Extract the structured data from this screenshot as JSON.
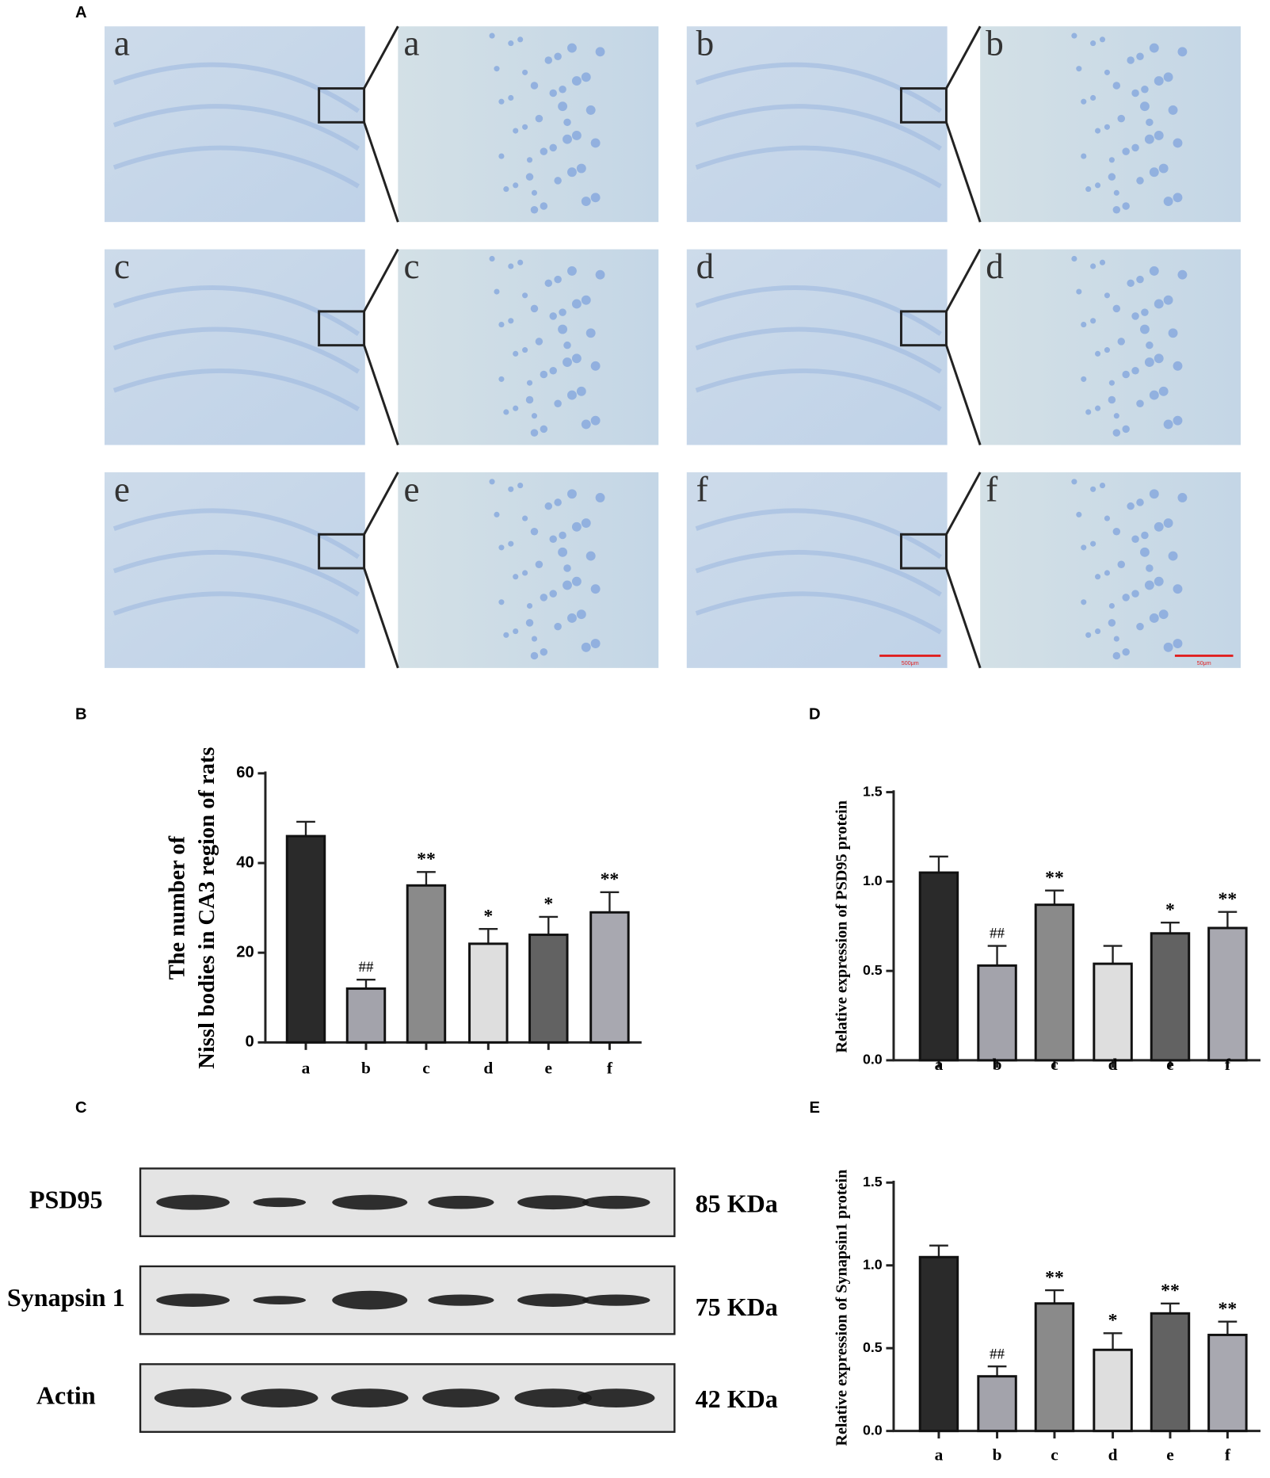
{
  "panel_labels": [
    "A",
    "B",
    "C",
    "D",
    "E"
  ],
  "micrographs": {
    "labels": [
      "a",
      "b",
      "c",
      "d",
      "e",
      "f"
    ],
    "scale_bars": [
      "500μm",
      "50μm"
    ]
  },
  "western_blot": {
    "proteins": [
      "PSD95",
      "Synapsin 1",
      "Actin"
    ],
    "sizes": [
      "85 KDa",
      "75 KDa",
      "42 KDa"
    ]
  },
  "chart_data": [
    {
      "type": "bar",
      "ylabel": [
        "The number of",
        "Nissl bodies in CA3 region of rats"
      ],
      "categories": [
        "a",
        "b",
        "c",
        "d",
        "e",
        "f"
      ],
      "values": [
        46,
        12,
        35,
        22,
        24,
        29
      ],
      "errors": [
        3.2,
        2,
        3,
        3.3,
        4,
        4.5
      ],
      "annotations": [
        null,
        "##",
        "**",
        "*",
        "*",
        "**"
      ],
      "colors": [
        "#2a2a2a",
        "#a3a3ab",
        "#8a8a8a",
        "#dedede",
        "#626262",
        "#a8a8b0"
      ],
      "ylim": [
        0,
        60
      ],
      "yticks": [
        0,
        20,
        40,
        60
      ]
    },
    {
      "type": "bar",
      "ylabel": [
        "Relative expression of PSD95 protein"
      ],
      "categories": [
        "a",
        "b",
        "c",
        "d",
        "e",
        "f"
      ],
      "values": [
        1.05,
        0.53,
        0.87,
        0.54,
        0.71,
        0.74
      ],
      "errors": [
        0.09,
        0.11,
        0.08,
        0.1,
        0.06,
        0.09
      ],
      "annotations": [
        null,
        "##",
        "**",
        null,
        "*",
        "**"
      ],
      "colors": [
        "#2a2a2a",
        "#a3a3ab",
        "#8a8a8a",
        "#dedede",
        "#626262",
        "#a8a8b0"
      ],
      "ylim": [
        0,
        1.5
      ],
      "yticks": [
        {
          "value": 0,
          "label": "0.0"
        },
        0.5,
        {
          "value": 1,
          "label": "1.0"
        },
        1.5
      ]
    },
    {
      "type": "bar",
      "ylabel": [
        "Relative expression of Synapsin1 protein"
      ],
      "categories": [
        "a",
        "b",
        "c",
        "d",
        "e",
        "f"
      ],
      "values": [
        1.05,
        0.33,
        0.77,
        0.49,
        0.71,
        0.58
      ],
      "errors": [
        0.07,
        0.06,
        0.08,
        0.1,
        0.06,
        0.08
      ],
      "annotations": [
        null,
        "##",
        "**",
        "*",
        "**",
        "**"
      ],
      "colors": [
        "#2a2a2a",
        "#a3a3ab",
        "#8a8a8a",
        "#dedede",
        "#626262",
        "#a8a8b0"
      ],
      "ylim": [
        0,
        1.5
      ],
      "yticks": [
        {
          "value": 0,
          "label": "0.0"
        },
        0.5,
        {
          "value": 1,
          "label": "1.0"
        },
        1.5
      ]
    }
  ]
}
